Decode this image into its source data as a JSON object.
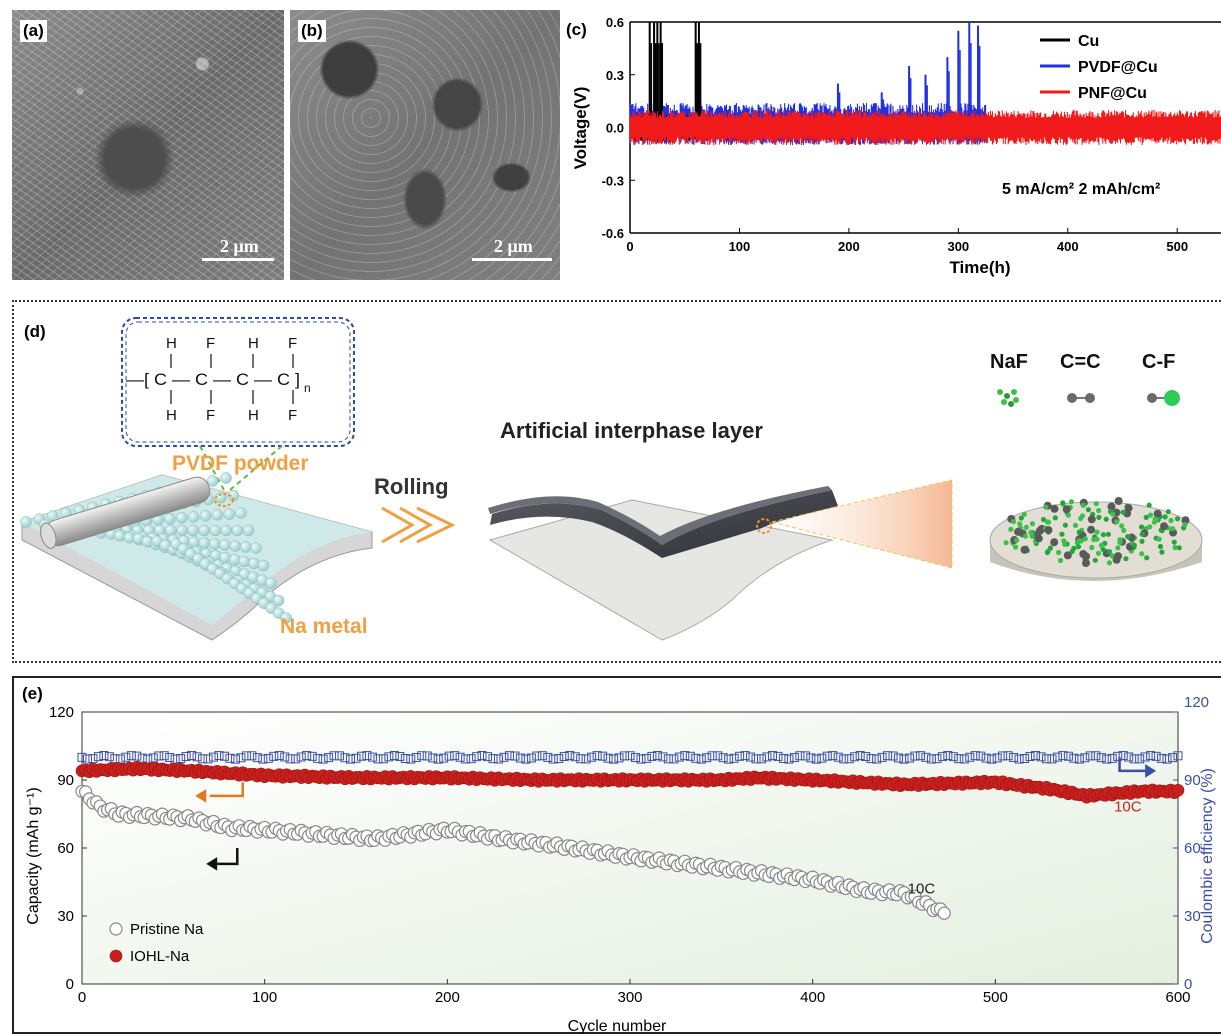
{
  "panels": {
    "a": {
      "letter": "(a)",
      "scale": "2 μm"
    },
    "b": {
      "letter": "(b)",
      "scale": "2 μm"
    },
    "c": {
      "letter": "(c)"
    },
    "d": {
      "letter": "(d)"
    },
    "e": {
      "letter": "(e)"
    }
  },
  "diagram_d": {
    "monomer_top": [
      "H",
      "F",
      "H",
      "F"
    ],
    "monomer_bottom": [
      "H",
      "F",
      "H",
      "F"
    ],
    "backbone": "—[ C — C — C — C ]",
    "subscript": "n",
    "pvdf_label": "PVDF powder",
    "rolling_label": "Rolling",
    "na_metal_label": "Na metal",
    "interphase_label": "Artificial interphase layer",
    "legend": [
      "NaF",
      "C=C",
      "C-F"
    ],
    "colors": {
      "orange": "#f0a040",
      "na_sphere": "#bfe3e2",
      "naf": "#3cc04a",
      "carbon": "#6a6a6a",
      "fluorine": "#2ecc57",
      "layer": "#4a4b52"
    }
  },
  "chart_data": [
    {
      "type": "line",
      "panel": "c",
      "xlabel": "Time(h)",
      "ylabel": "Voltage(V)",
      "xlim": [
        0,
        540
      ],
      "ylim": [
        -0.6,
        0.6
      ],
      "xticks": [
        0,
        100,
        200,
        300,
        400,
        500
      ],
      "yticks": [
        -0.6,
        -0.3,
        0.0,
        0.3,
        0.6
      ],
      "ytick_labels": [
        "-0.6",
        "-0.3",
        "0.0",
        "0.3",
        "0.6"
      ],
      "annotation": "5 mA/cm² 2 mAh/cm²",
      "legend_position": "top-right",
      "series": [
        {
          "name": "Cu",
          "color": "#000000",
          "x_range": [
            0,
            65
          ],
          "band": [
            -0.08,
            0.08
          ],
          "spikes": [
            [
              18,
              0.6
            ],
            [
              22,
              0.6
            ],
            [
              25,
              0.6
            ],
            [
              28,
              0.6
            ],
            [
              60,
              0.6
            ],
            [
              63,
              0.6
            ]
          ]
        },
        {
          "name": "PVDF@Cu",
          "color": "#1f2fe6",
          "x_range": [
            0,
            325
          ],
          "band": [
            -0.1,
            0.14
          ],
          "spikes": [
            [
              190,
              0.25
            ],
            [
              230,
              0.2
            ],
            [
              255,
              0.35
            ],
            [
              270,
              0.3
            ],
            [
              290,
              0.4
            ],
            [
              300,
              0.55
            ],
            [
              310,
              0.6
            ],
            [
              318,
              0.58
            ]
          ]
        },
        {
          "name": "PNF@Cu",
          "color": "#f01a1a",
          "x_range": [
            0,
            540
          ],
          "band": [
            -0.1,
            0.1
          ],
          "spikes": []
        }
      ]
    },
    {
      "type": "scatter",
      "panel": "e",
      "xlabel": "Cycle number",
      "ylabel": "Capacity (mAh g⁻¹)",
      "y2label": "Coulombic efficiency (%)",
      "xlim": [
        0,
        600
      ],
      "ylim": [
        0,
        120
      ],
      "y2lim": [
        0,
        120
      ],
      "xticks": [
        0,
        100,
        200,
        300,
        400,
        500,
        600
      ],
      "yticks": [
        0,
        30,
        60,
        90,
        120
      ],
      "y2ticks": [
        0,
        30,
        60,
        90,
        120
      ],
      "legend_position": "bottom-left",
      "annotations": [
        {
          "text": "10C",
          "x": 452,
          "y": 40,
          "color": "#222222"
        },
        {
          "text": "10C",
          "x": 565,
          "y": 76,
          "color": "#c0281e"
        }
      ],
      "series": [
        {
          "name": "Pristine Na",
          "marker": "open-circle",
          "color": "#888888",
          "x": [
            0,
            10,
            20,
            40,
            60,
            80,
            100,
            130,
            160,
            200,
            230,
            260,
            300,
            330,
            360,
            400,
            430,
            450,
            470
          ],
          "values": [
            85,
            78,
            75,
            74,
            73,
            69,
            68,
            66,
            64,
            68,
            64,
            61,
            56,
            53,
            50,
            46,
            41,
            40,
            32
          ]
        },
        {
          "name": "IOHL-Na",
          "marker": "filled-circle",
          "color": "#c8201e",
          "x": [
            0,
            30,
            60,
            100,
            150,
            200,
            250,
            300,
            350,
            370,
            400,
            450,
            500,
            530,
            550,
            580,
            600
          ],
          "values": [
            94,
            95,
            94,
            92,
            91,
            91,
            90,
            90,
            90,
            91,
            90,
            88,
            89,
            86,
            83,
            85,
            85
          ]
        },
        {
          "name": "Coulombic efficiency",
          "axis": "right",
          "marker": "open-square",
          "color": "#3c4fa8",
          "x": [
            0,
            100,
            200,
            300,
            400,
            500,
            600
          ],
          "values": [
            100,
            100,
            100,
            100,
            100,
            100,
            100
          ]
        }
      ]
    }
  ]
}
